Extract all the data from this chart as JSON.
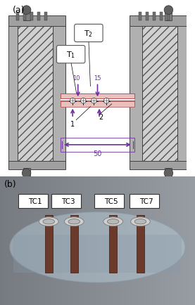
{
  "fig_width": 2.77,
  "fig_height": 4.35,
  "dpi": 100,
  "bg_color": "#ffffff",
  "label_a": "(a)",
  "label_b": "(b)",
  "purple_color": "#7030A0",
  "hatch_color": "#a0a0a0",
  "steel_color": "#c8c8c8",
  "steel_dark": "#808080",
  "sample_color": "#f0d0d0",
  "cell_gap_color": "#ffffff",
  "annotation_color": "#7030A0",
  "T1_label": "T$_1$",
  "T2_label": "T$_2$",
  "dim_10": "10",
  "dim_15": "15",
  "dim_50": "50",
  "label_1": "1",
  "label_2": "2",
  "tc_labels": [
    "TC1",
    "TC3",
    "TC5",
    "TC7"
  ],
  "photo_bg": "#b0b8c0",
  "photo_tube_color": "#d0dce8",
  "screw_color": "#c0c0c0",
  "rod_color": "#6b3a2a"
}
